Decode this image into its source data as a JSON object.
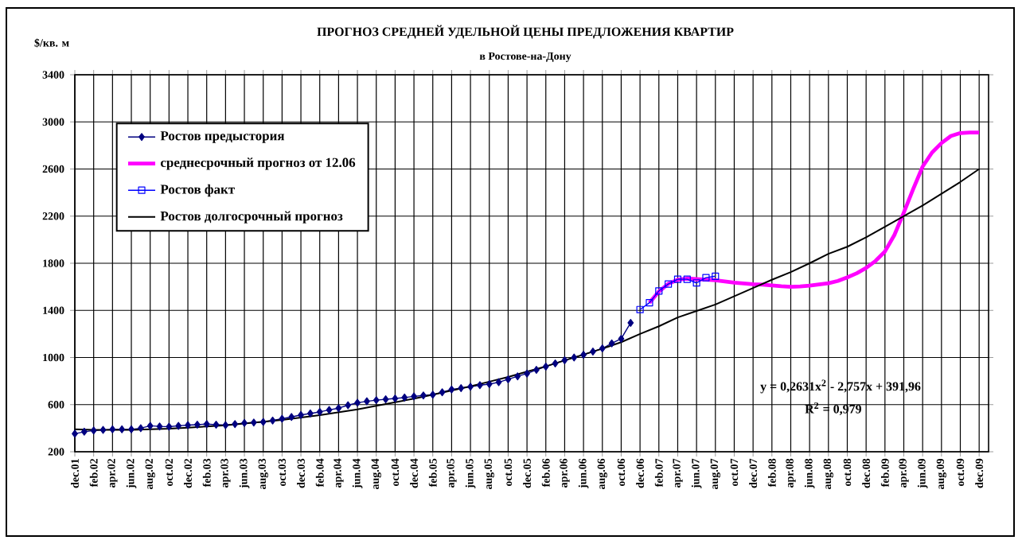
{
  "chart_data": {
    "type": "line",
    "title": "ПРОГНОЗ СРЕДНЕЙ УДЕЛЬНОЙ ЦЕНЫ ПРЕДЛОЖЕНИЯ КВАРТИР",
    "subtitle": "в Ростове-на-Дону",
    "ylabel": "$/кв. м",
    "categories": [
      "dec.01",
      null,
      "feb.02",
      null,
      "apr.02",
      null,
      "jun.02",
      null,
      "aug.02",
      null,
      "oct.02",
      null,
      "dec.02",
      null,
      "feb.03",
      null,
      "apr.03",
      null,
      "jun.03",
      null,
      "aug.03",
      null,
      "oct.03",
      null,
      "dec.03",
      null,
      "feb.04",
      null,
      "apr.04",
      null,
      "jun.04",
      null,
      "aug.04",
      null,
      "oct.04",
      null,
      "dec.04",
      null,
      "feb.05",
      null,
      "apr.05",
      null,
      "jun.05",
      null,
      "aug.05",
      null,
      "oct.05",
      null,
      "dec.05",
      null,
      "feb.06",
      null,
      "apr.06",
      null,
      "jun.06",
      null,
      "aug.06",
      null,
      "oct.06",
      null,
      "dec.06",
      null,
      "feb.07",
      null,
      "apr.07",
      null,
      "jun.07",
      null,
      "aug.07",
      null,
      "oct.07",
      null,
      "dec.07",
      null,
      "feb.08",
      null,
      "apr.08",
      null,
      "jun.08",
      null,
      "aug.08",
      null,
      "oct.08",
      null,
      "dec.08",
      null,
      "feb.09",
      null,
      "apr.09",
      null,
      "jun.09",
      null,
      "aug.09",
      null,
      "oct.09",
      null,
      "dec.09"
    ],
    "series": [
      {
        "name": "Ростов предыстория",
        "color": "#000080",
        "marker": "diamond",
        "values": [
          353,
          370,
          380,
          385,
          390,
          390,
          390,
          400,
          420,
          415,
          413,
          420,
          426,
          430,
          435,
          430,
          426,
          435,
          444,
          448,
          453,
          465,
          480,
          495,
          512,
          525,
          538,
          555,
          570,
          595,
          616,
          628,
          638,
          645,
          652,
          660,
          670,
          678,
          684,
          705,
          729,
          740,
          752,
          765,
          774,
          790,
          815,
          840,
          864,
          895,
          923,
          950,
          977,
          1000,
          1023,
          1050,
          1077,
          1120,
          1159,
          1294,
          null,
          null,
          null,
          null,
          null,
          null,
          null,
          null,
          null,
          null,
          null,
          null,
          null,
          null,
          null,
          null,
          null,
          null,
          null,
          null,
          null,
          null,
          null,
          null,
          null,
          null,
          null,
          null,
          null,
          null,
          null,
          null,
          null,
          null,
          null,
          null,
          null
        ]
      },
      {
        "name": "среднесрочный прогноз от 12.06",
        "color": "#ff00ff",
        "marker": "none",
        "values": [
          null,
          null,
          null,
          null,
          null,
          null,
          null,
          null,
          null,
          null,
          null,
          null,
          null,
          null,
          null,
          null,
          null,
          null,
          null,
          null,
          null,
          null,
          null,
          null,
          null,
          null,
          null,
          null,
          null,
          null,
          null,
          null,
          null,
          null,
          null,
          null,
          null,
          null,
          null,
          null,
          null,
          null,
          null,
          null,
          null,
          null,
          null,
          null,
          null,
          null,
          null,
          null,
          null,
          null,
          null,
          null,
          null,
          null,
          null,
          null,
          null,
          1465,
          1560,
          1625,
          1660,
          1670,
          1665,
          1660,
          1655,
          1645,
          1635,
          1628,
          1622,
          1618,
          1612,
          1605,
          1600,
          1603,
          1610,
          1620,
          1630,
          1650,
          1680,
          1715,
          1760,
          1820,
          1900,
          2040,
          2230,
          2430,
          2620,
          2740,
          2820,
          2880,
          2905,
          2910,
          2910
        ]
      },
      {
        "name": "Ростов факт",
        "color": "#0000ff",
        "marker": "square",
        "values": [
          null,
          null,
          null,
          null,
          null,
          null,
          null,
          null,
          null,
          null,
          null,
          null,
          null,
          null,
          null,
          null,
          null,
          null,
          null,
          null,
          null,
          null,
          null,
          null,
          null,
          null,
          null,
          null,
          null,
          null,
          null,
          null,
          null,
          null,
          null,
          null,
          null,
          null,
          null,
          null,
          null,
          null,
          null,
          null,
          null,
          null,
          null,
          null,
          null,
          null,
          null,
          null,
          null,
          null,
          null,
          null,
          null,
          null,
          null,
          null,
          1407,
          1465,
          1565,
          1624,
          1664,
          1664,
          1633,
          1678,
          1690,
          null,
          null,
          null,
          null,
          null,
          null,
          null,
          null,
          null,
          null,
          null,
          null,
          null,
          null,
          null,
          null,
          null,
          null,
          null,
          null,
          null,
          null,
          null,
          null,
          null,
          null,
          null,
          null
        ]
      },
      {
        "name": "Ростов долгосрочный прогноз",
        "color": "#000000",
        "marker": "none",
        "values": [
          390,
          null,
          385,
          null,
          385,
          null,
          385,
          null,
          390,
          null,
          395,
          null,
          405,
          null,
          415,
          null,
          425,
          null,
          440,
          null,
          455,
          null,
          470,
          null,
          490,
          null,
          510,
          null,
          535,
          null,
          560,
          null,
          590,
          null,
          620,
          null,
          650,
          null,
          685,
          null,
          720,
          null,
          755,
          null,
          795,
          null,
          835,
          null,
          880,
          null,
          925,
          null,
          975,
          null,
          1025,
          null,
          1075,
          null,
          1130,
          null,
          1200,
          null,
          1265,
          null,
          1340,
          null,
          1395,
          null,
          1450,
          null,
          1520,
          null,
          1590,
          null,
          1660,
          null,
          1725,
          null,
          1800,
          null,
          1880,
          null,
          1940,
          null,
          2020,
          null,
          2110,
          null,
          2200,
          null,
          2290,
          null,
          2390,
          null,
          2490,
          null,
          2600
        ]
      }
    ],
    "ylim": [
      200,
      3400
    ],
    "yticks": [
      200,
      600,
      1000,
      1400,
      1800,
      2200,
      2600,
      3000,
      3400
    ],
    "grid": true,
    "legend": "top left",
    "annotations": [
      "y = 0,2631x$^{2}$ - 2,757x + 391,96",
      "R$^{2}$ = 0,979"
    ]
  }
}
